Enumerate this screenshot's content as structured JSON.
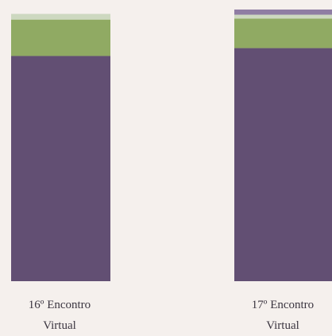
{
  "chart_data": {
    "type": "bar",
    "stacked": true,
    "categories": [
      "16º Encontro Virtual",
      "17º Encontro Virtual"
    ],
    "category_lines": [
      [
        "16º Encontro",
        "Virtual"
      ],
      [
        "17º Encontro",
        "Virtual"
      ]
    ],
    "series": [
      {
        "values": [
          82.9,
          85.8
        ],
        "color": "#624f73"
      },
      {
        "values": [
          13.4,
          10.9
        ],
        "color": "#90aa63"
      },
      {
        "values": [
          2.1,
          1.4
        ],
        "color": "#cdd8c0"
      },
      {
        "values": [
          0,
          1.9
        ],
        "color": "#8f7da3"
      }
    ],
    "ylim": [
      0,
      100
    ],
    "grid": false,
    "legend": "none",
    "title": "",
    "xlabel": "",
    "ylabel": ""
  }
}
